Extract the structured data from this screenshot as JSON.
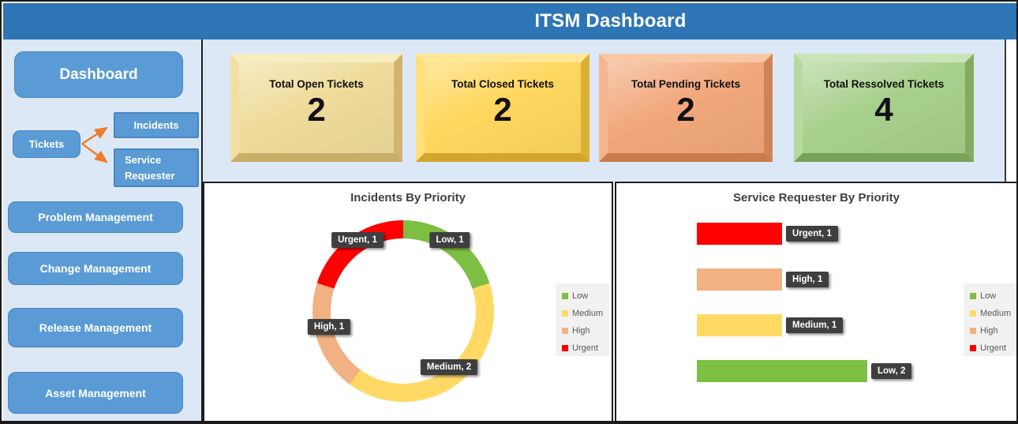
{
  "header": {
    "title": "ITSM Dashboard",
    "background": "#2E75B5"
  },
  "sidebar": {
    "dashboard_label": "Dashboard",
    "tickets_label": "Tickets",
    "incidents_label": "Incidents",
    "service_requester_label": "Service Requester",
    "buttons": [
      "Problem Management",
      "Change Management",
      "Release Management",
      "Asset Management"
    ],
    "arrow_color": "#ED7D31",
    "button_color": "#5B9BD5"
  },
  "kpi_cards": [
    {
      "title": "Total Open Tickets",
      "value": "2",
      "color": "#EFDC9B"
    },
    {
      "title": "Total Closed Tickets",
      "value": "2",
      "color": "#FFD75E"
    },
    {
      "title": "Total Pending Tickets",
      "value": "2",
      "color": "#F2A87C"
    },
    {
      "title": "Total Ressolved Tickets",
      "value": "4",
      "color": "#A8D08D"
    }
  ],
  "chart_data": [
    {
      "type": "pie",
      "subtype": "donut",
      "title": "Incidents By Priority",
      "categories": [
        "Low",
        "Medium",
        "High",
        "Urgent"
      ],
      "values": [
        1,
        2,
        1,
        1
      ],
      "colors": [
        "#7CBF42",
        "#FFD964",
        "#F2B183",
        "#FF0000"
      ],
      "data_labels": [
        "Low, 1",
        "Medium, 2",
        "High, 1",
        "Urgent, 1"
      ],
      "start_angle": 0,
      "legend_position": "right",
      "legend": [
        {
          "label": "Low",
          "color": "#7CBF42"
        },
        {
          "label": "Medium",
          "color": "#FFD964"
        },
        {
          "label": "High",
          "color": "#F2B183"
        },
        {
          "label": "Urgent",
          "color": "#FF0000"
        }
      ]
    },
    {
      "type": "bar",
      "orientation": "horizontal",
      "title": "Service Requester By Priority",
      "categories": [
        "Urgent",
        "High",
        "Medium",
        "Low"
      ],
      "values": [
        1,
        1,
        1,
        2
      ],
      "colors": [
        "#FF0000",
        "#F2B183",
        "#FFD964",
        "#7CBF42"
      ],
      "data_labels": [
        "Urgent, 1",
        "High, 1",
        "Medium, 1",
        "Low, 2"
      ],
      "xlim": [
        0,
        2
      ],
      "grid": false,
      "legend_position": "right",
      "legend": [
        {
          "label": "Low",
          "color": "#7CBF42"
        },
        {
          "label": "Medium",
          "color": "#FFD964"
        },
        {
          "label": "High",
          "color": "#F2B183"
        },
        {
          "label": "Urgent",
          "color": "#FF0000"
        }
      ]
    }
  ]
}
